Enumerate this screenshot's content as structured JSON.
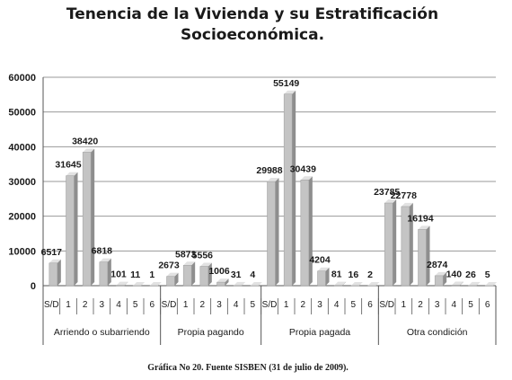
{
  "chart_data": {
    "type": "bar",
    "title_lines": [
      "Tenencia de la Vivienda y su Estratificación",
      "Socioeconómica."
    ],
    "ylim": [
      0,
      60000
    ],
    "yticks": [
      0,
      10000,
      20000,
      30000,
      40000,
      50000,
      60000
    ],
    "grid": true,
    "groups": [
      {
        "name": "Arriendo o subarriendo",
        "categories": [
          "S/D",
          "1",
          "2",
          "3",
          "4",
          "5",
          "6"
        ],
        "values": [
          6517,
          31645,
          38420,
          6818,
          101,
          11,
          1
        ]
      },
      {
        "name": "Propia pagando",
        "categories": [
          "S/D",
          "1",
          "2",
          "3",
          "4",
          "5"
        ],
        "values": [
          2673,
          5873,
          5556,
          1006,
          31,
          4
        ]
      },
      {
        "name": "Propia pagada",
        "categories": [
          "S/D",
          "1",
          "2",
          "3",
          "4",
          "5",
          "6"
        ],
        "values": [
          29988,
          55149,
          30439,
          4204,
          81,
          16,
          2
        ]
      },
      {
        "name": "Otra condición",
        "categories": [
          "S/D",
          "1",
          "2",
          "3",
          "4",
          "5",
          "6"
        ],
        "values": [
          23785,
          22778,
          16194,
          2874,
          140,
          26,
          5
        ]
      }
    ]
  },
  "caption": "Gráfica No 20. Fuente SISBEN (31 de julio de 2009).",
  "colors": {
    "bar_front": "#c4c4c4",
    "bar_side": "#8e8e8e",
    "bar_top": "#e2e2e2",
    "grid": "#9a9a9a",
    "axis": "#555555"
  }
}
